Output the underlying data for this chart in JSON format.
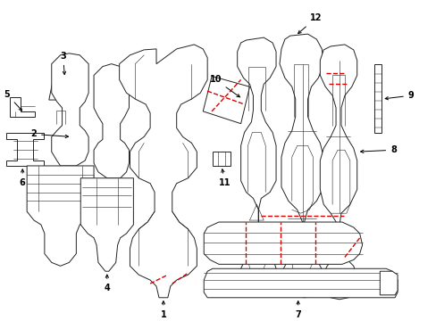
{
  "background_color": "#ffffff",
  "line_color": "#222222",
  "red_color": "#dd0000",
  "fig_width": 4.89,
  "fig_height": 3.6,
  "dpi": 100
}
